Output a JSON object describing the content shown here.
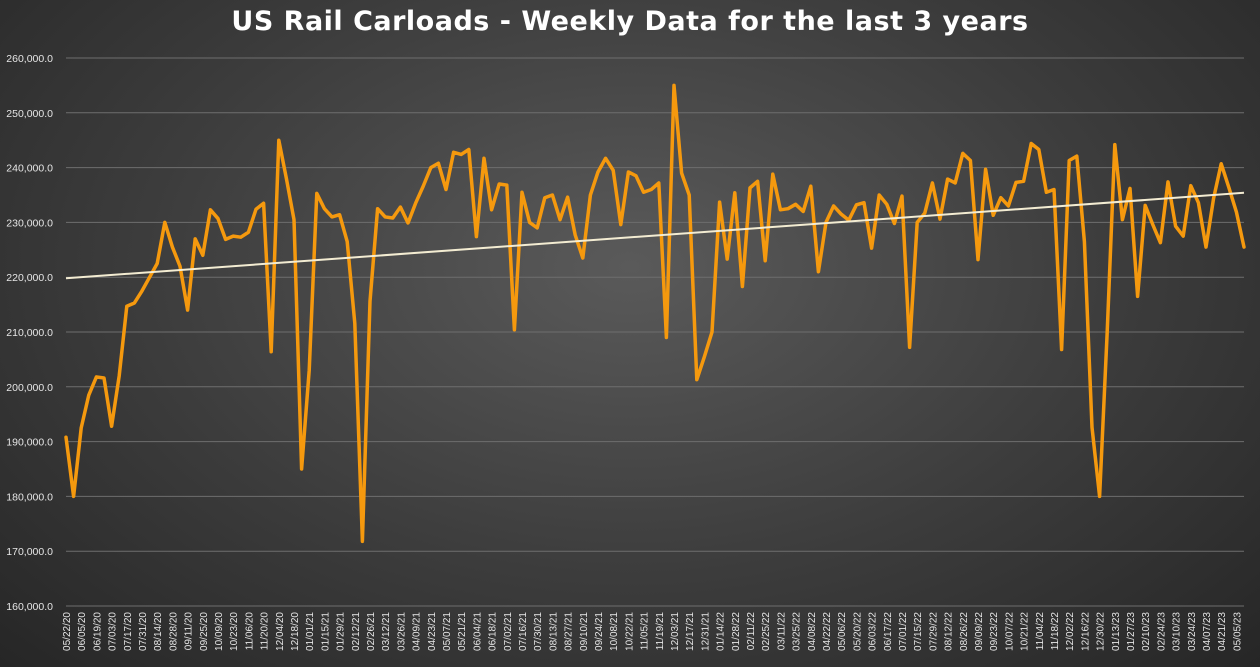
{
  "chart_data": {
    "type": "line",
    "title": "US Rail Carloads - Weekly Data for the last 3 years",
    "xlabel": "",
    "ylabel": "",
    "ylim": [
      160000,
      260000
    ],
    "y_ticks": [
      "160,000.0",
      "170,000.0",
      "180,000.0",
      "190,000.0",
      "200,000.0",
      "210,000.0",
      "220,000.0",
      "230,000.0",
      "240,000.0",
      "250,000.0",
      "260,000.0"
    ],
    "y_tick_values": [
      160000,
      170000,
      180000,
      190000,
      200000,
      210000,
      220000,
      230000,
      240000,
      250000,
      260000
    ],
    "grid": true,
    "legend": "none",
    "x_labels": [
      "05/22/20",
      "06/05/20",
      "06/19/20",
      "07/03/20",
      "07/17/20",
      "07/31/20",
      "08/14/20",
      "08/28/20",
      "09/11/20",
      "09/25/20",
      "10/09/20",
      "10/23/20",
      "11/06/20",
      "11/20/20",
      "12/04/20",
      "12/18/20",
      "01/01/21",
      "01/15/21",
      "01/29/21",
      "02/12/21",
      "02/26/21",
      "03/12/21",
      "03/26/21",
      "04/09/21",
      "04/23/21",
      "05/07/21",
      "05/21/21",
      "06/04/21",
      "06/18/21",
      "07/02/21",
      "07/16/21",
      "07/30/21",
      "08/13/21",
      "08/27/21",
      "09/10/21",
      "09/24/21",
      "10/08/21",
      "10/22/21",
      "11/05/21",
      "11/19/21",
      "12/03/21",
      "12/17/21",
      "12/31/21",
      "01/14/22",
      "01/28/22",
      "02/11/22",
      "02/25/22",
      "03/11/22",
      "03/25/22",
      "04/08/22",
      "04/22/22",
      "05/06/22",
      "05/20/22",
      "06/03/22",
      "06/17/22",
      "07/01/22",
      "07/15/22",
      "07/29/22",
      "08/12/22",
      "08/26/22",
      "09/09/22",
      "09/23/22",
      "10/07/22",
      "10/21/22",
      "11/04/22",
      "11/18/22",
      "12/02/22",
      "12/16/22",
      "12/30/22",
      "01/13/23",
      "01/27/23",
      "02/10/23",
      "02/24/23",
      "03/10/23",
      "03/24/23",
      "04/07/23",
      "04/21/23",
      "05/05/23"
    ],
    "series": [
      {
        "color": "#f5990e",
        "values": [
          190800,
          180000,
          192500,
          198500,
          201800,
          201600,
          192800,
          202000,
          214700,
          215300,
          217500,
          220000,
          222500,
          230000,
          225500,
          222000,
          214000,
          227000,
          224000,
          232300,
          230700,
          226900,
          227500,
          227300,
          228200,
          232400,
          233500,
          206400,
          245000,
          238000,
          230500,
          185000,
          203000,
          235300,
          232500,
          231000,
          231400,
          226500,
          211600,
          171800,
          215600,
          232500,
          231000,
          230800,
          232800,
          229900,
          233500,
          236600,
          240000,
          240800,
          236000,
          242800,
          242400,
          243300,
          227400,
          241700,
          232300,
          237000,
          236800,
          210400,
          235500,
          230000,
          229000,
          234500,
          235000,
          230500,
          234600,
          227700,
          223500,
          235000,
          239200,
          241700,
          239500,
          229600,
          239200,
          238500,
          235500,
          236000,
          237200,
          209000,
          255000,
          239000,
          235000,
          201300,
          205500,
          210000,
          233700,
          223300,
          235400,
          218300,
          236300,
          237500,
          223000,
          238800,
          232300,
          232500,
          233300,
          232000,
          236600,
          221000,
          230000,
          233000,
          231500,
          230400,
          233200,
          233600,
          225300,
          235000,
          233300,
          229800,
          234800,
          207200,
          230000,
          231700,
          237200,
          230600,
          237900,
          237200,
          242600,
          241300,
          223200,
          239700,
          231300,
          234500,
          233000,
          237300,
          237500,
          244400,
          243300,
          235500,
          236000,
          206800,
          241300,
          242100,
          226500,
          192600,
          180000,
          210000,
          244200,
          230500,
          236200,
          216500,
          233100,
          229600,
          226300,
          237400,
          229300,
          227500,
          236700,
          233600,
          225500,
          234400,
          240700,
          236400,
          231900,
          225500
        ]
      },
      {
        "color": "#f3ecd2",
        "values": [
          219800,
          235400
        ]
      }
    ]
  }
}
